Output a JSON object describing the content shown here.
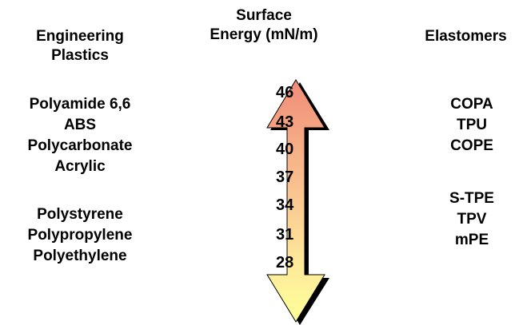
{
  "headers": {
    "left": [
      "Engineering",
      "Plastics"
    ],
    "middle": [
      "Surface",
      "Energy (mN/m)"
    ],
    "right": [
      "Elastomers"
    ]
  },
  "engineering_plastics": {
    "group_a": [
      "Polyamide 6,6",
      "ABS",
      "Polycarbonate",
      "Acrylic"
    ],
    "group_b": [
      "Polystyrene",
      "Polypropylene",
      "Polyethylene"
    ]
  },
  "elastomers": {
    "group_a": [
      "COPA",
      "TPU",
      "COPE"
    ],
    "group_b": [
      "S-TPE",
      "TPV",
      "mPE"
    ]
  },
  "scale": {
    "ticks": [
      "46",
      "43",
      "40",
      "37",
      "34",
      "31",
      "28"
    ],
    "gradient_top_color": "#f08c78",
    "gradient_bottom_color": "#ffff99"
  }
}
